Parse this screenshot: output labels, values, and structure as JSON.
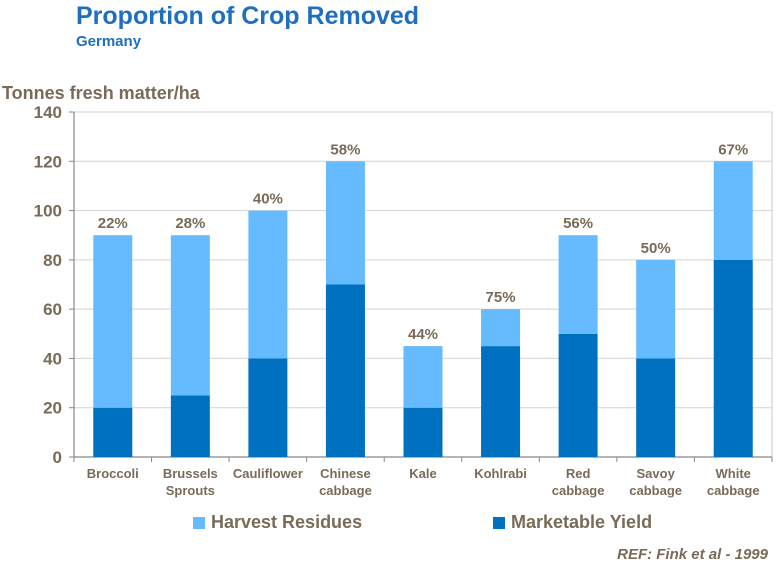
{
  "header": {
    "title": "Proportion of Crop Removed",
    "subtitle": "Germany"
  },
  "reference": "REF: Fink et al - 1999",
  "colors": {
    "harvest_residues": "#66bbff",
    "marketable_yield": "#0070c0",
    "title": "#1f6fc0",
    "text": "#7a6a58"
  },
  "chart_data": {
    "type": "bar",
    "stacked": true,
    "title": "Proportion of Crop Removed",
    "subtitle": "Germany",
    "ylabel": "Tonnes fresh matter/ha",
    "xlabel": "",
    "ylim": [
      0,
      140
    ],
    "yticks": [
      0,
      20,
      40,
      60,
      80,
      100,
      120,
      140
    ],
    "grid": true,
    "legend_position": "bottom",
    "categories": [
      [
        "Broccoli"
      ],
      [
        "Brussels",
        "Sprouts"
      ],
      [
        "Cauliflower"
      ],
      [
        "Chinese",
        "cabbage"
      ],
      [
        "Kale"
      ],
      [
        "Kohlrabi"
      ],
      [
        "Red",
        "cabbage"
      ],
      [
        "Savoy",
        "cabbage"
      ],
      [
        "White",
        "cabbage"
      ]
    ],
    "series": [
      {
        "name": "Marketable Yield",
        "values": [
          20,
          25,
          40,
          70,
          20,
          45,
          50,
          40,
          80
        ]
      },
      {
        "name": "Harvest Residues",
        "values": [
          70,
          65,
          60,
          50,
          25,
          15,
          40,
          40,
          40
        ]
      }
    ],
    "percent_labels": [
      "22%",
      "28%",
      "40%",
      "58%",
      "44%",
      "75%",
      "56%",
      "50%",
      "67%"
    ]
  }
}
